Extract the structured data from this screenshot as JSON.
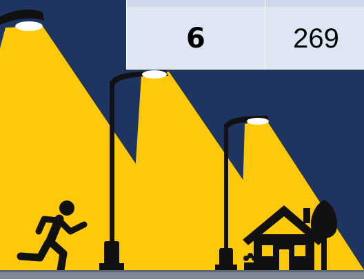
{
  "colors": {
    "night_sky": "#1e3461",
    "light_beam": "#ffc90b",
    "silhouette": "#111111",
    "lamp_glow": "#ffffff",
    "table_cell": "#dde6f2",
    "ground": "#7f8a99"
  },
  "icons": [
    "street-lamp-icon",
    "runner-icon",
    "house-icon",
    "tree-icon",
    "flower-pot-icon"
  ],
  "table": {
    "rows": [
      {
        "col1": "",
        "col2": ""
      },
      {
        "col1": "6",
        "col2": "269"
      }
    ]
  }
}
